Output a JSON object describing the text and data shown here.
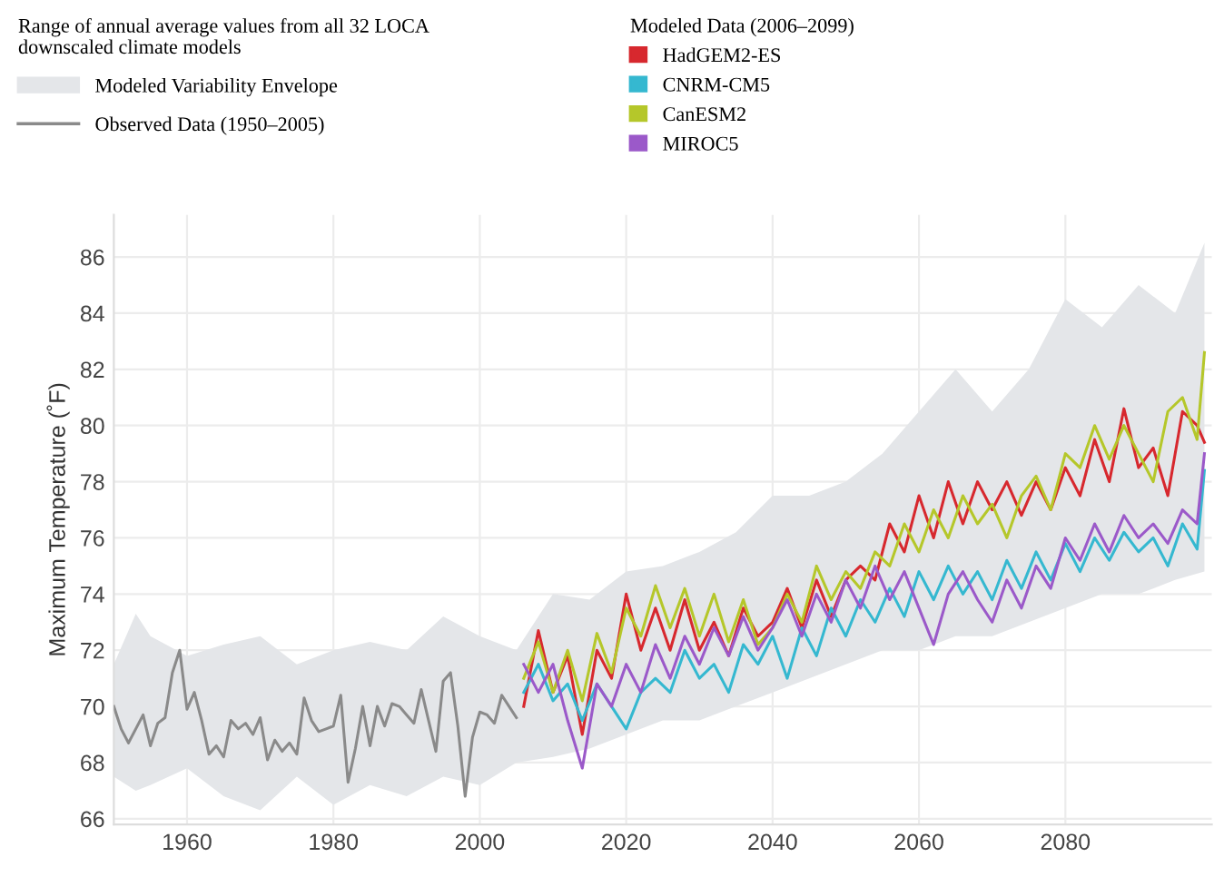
{
  "chart_data": {
    "type": "line",
    "ylabel": "Maximum Temperature (˚F)",
    "annotations": [
      "Range of annual average values from all 32 LOCA downscaled climate models",
      "Modeled Data (2006–2099)"
    ],
    "xlim": [
      1950,
      2100
    ],
    "xticks": [
      1960,
      1980,
      2000,
      2020,
      2040,
      2060,
      2080
    ],
    "ylim": [
      65.8,
      87.5
    ],
    "yticks": [
      66,
      68,
      70,
      72,
      74,
      76,
      78,
      80,
      82,
      84,
      86
    ],
    "grid": true,
    "legend": "top",
    "series": [
      {
        "name": "Modeled Variability Envelope",
        "type": "area",
        "color": "#e4e6e9",
        "x": [
          1950,
          1953,
          1955,
          1960,
          1965,
          1970,
          1975,
          1980,
          1985,
          1990,
          1995,
          2000,
          2005,
          2010,
          2015,
          2020,
          2025,
          2030,
          2035,
          2040,
          2045,
          2050,
          2055,
          2060,
          2065,
          2070,
          2075,
          2080,
          2085,
          2090,
          2095,
          2099
        ],
        "lower": [
          67.5,
          67.0,
          67.2,
          67.8,
          66.8,
          66.3,
          67.5,
          66.5,
          67.2,
          66.8,
          67.5,
          67.2,
          68.0,
          68.2,
          68.5,
          69.0,
          69.5,
          69.5,
          70.0,
          70.5,
          71.0,
          71.5,
          72.0,
          72.0,
          72.5,
          72.5,
          73.0,
          73.5,
          74.0,
          74.0,
          74.5,
          74.8
        ],
        "values": [
          null,
          null,
          null,
          null,
          null,
          null,
          null,
          null,
          null,
          null,
          null,
          null,
          null,
          null,
          null,
          null,
          null,
          null,
          null,
          null,
          null,
          null,
          null,
          null,
          null,
          null,
          null,
          null,
          null,
          null,
          null,
          null
        ],
        "upper": [
          71.5,
          73.3,
          72.5,
          71.8,
          72.2,
          72.5,
          71.5,
          72.0,
          72.3,
          72.0,
          73.2,
          72.5,
          72.0,
          74.0,
          73.8,
          74.8,
          75.0,
          75.5,
          76.2,
          77.5,
          77.5,
          78.0,
          79.0,
          80.5,
          82.0,
          80.5,
          82.0,
          84.5,
          83.5,
          85.0,
          84.0,
          86.5
        ]
      },
      {
        "name": "Observed Data (1950–2005)",
        "color": "#8a8a8a",
        "x": [
          1950,
          1951,
          1952,
          1953,
          1954,
          1955,
          1956,
          1957,
          1958,
          1959,
          1960,
          1961,
          1962,
          1963,
          1964,
          1965,
          1966,
          1967,
          1968,
          1969,
          1970,
          1971,
          1972,
          1973,
          1974,
          1975,
          1976,
          1977,
          1978,
          1979,
          1980,
          1981,
          1982,
          1983,
          1984,
          1985,
          1986,
          1987,
          1988,
          1989,
          1990,
          1991,
          1992,
          1993,
          1994,
          1995,
          1996,
          1997,
          1998,
          1999,
          2000,
          2001,
          2002,
          2003,
          2004,
          2005
        ],
        "values": [
          70.0,
          69.2,
          68.7,
          69.2,
          69.7,
          68.6,
          69.4,
          69.6,
          71.2,
          72.0,
          69.9,
          70.5,
          69.5,
          68.3,
          68.6,
          68.2,
          69.5,
          69.2,
          69.4,
          69.0,
          69.6,
          68.1,
          68.8,
          68.4,
          68.7,
          68.3,
          70.3,
          69.5,
          69.1,
          69.2,
          69.3,
          70.4,
          67.3,
          68.5,
          70.0,
          68.6,
          70.0,
          69.3,
          70.1,
          70.0,
          69.7,
          69.4,
          70.6,
          69.5,
          68.4,
          70.9,
          71.2,
          69.3,
          66.8,
          68.9,
          69.8,
          69.7,
          69.4,
          70.4,
          70.0,
          69.6
        ]
      },
      {
        "name": "HadGEM2-ES",
        "color": "#d7282e",
        "x": [
          2006,
          2008,
          2010,
          2012,
          2014,
          2016,
          2018,
          2020,
          2022,
          2024,
          2026,
          2028,
          2030,
          2032,
          2034,
          2036,
          2038,
          2040,
          2042,
          2044,
          2046,
          2048,
          2050,
          2052,
          2054,
          2056,
          2058,
          2060,
          2062,
          2064,
          2066,
          2068,
          2070,
          2072,
          2074,
          2076,
          2078,
          2080,
          2082,
          2084,
          2086,
          2088,
          2090,
          2092,
          2094,
          2096,
          2098,
          2099
        ],
        "values": [
          70.0,
          72.7,
          70.5,
          71.8,
          69.0,
          72.0,
          71.0,
          74.0,
          72.0,
          73.5,
          72.0,
          73.8,
          72.0,
          73.0,
          71.8,
          73.5,
          72.5,
          73.0,
          74.2,
          72.8,
          74.5,
          73.2,
          74.5,
          75.0,
          74.5,
          76.5,
          75.5,
          77.5,
          76.0,
          78.0,
          76.5,
          78.0,
          77.0,
          78.0,
          76.8,
          78.0,
          77.0,
          78.5,
          77.5,
          79.5,
          78.0,
          80.6,
          78.5,
          79.2,
          77.5,
          80.5,
          80.0,
          79.4
        ]
      },
      {
        "name": "CNRM-CM5",
        "color": "#35b8d0",
        "x": [
          2006,
          2008,
          2010,
          2012,
          2014,
          2016,
          2018,
          2020,
          2022,
          2024,
          2026,
          2028,
          2030,
          2032,
          2034,
          2036,
          2038,
          2040,
          2042,
          2044,
          2046,
          2048,
          2050,
          2052,
          2054,
          2056,
          2058,
          2060,
          2062,
          2064,
          2066,
          2068,
          2070,
          2072,
          2074,
          2076,
          2078,
          2080,
          2082,
          2084,
          2086,
          2088,
          2090,
          2092,
          2094,
          2096,
          2098,
          2099
        ],
        "values": [
          70.5,
          71.5,
          70.2,
          70.8,
          69.5,
          70.8,
          70.0,
          69.2,
          70.5,
          71.0,
          70.5,
          72.0,
          71.0,
          71.5,
          70.5,
          72.2,
          71.5,
          72.5,
          71.0,
          72.8,
          71.8,
          73.5,
          72.5,
          73.8,
          73.0,
          74.2,
          73.2,
          74.8,
          73.8,
          75.0,
          74.0,
          74.8,
          73.8,
          75.2,
          74.2,
          75.5,
          74.5,
          75.8,
          74.8,
          76.0,
          75.2,
          76.2,
          75.5,
          76.0,
          75.0,
          76.5,
          75.6,
          78.4
        ]
      },
      {
        "name": "CanESM2",
        "color": "#b5c72a",
        "x": [
          2006,
          2008,
          2010,
          2012,
          2014,
          2016,
          2018,
          2020,
          2022,
          2024,
          2026,
          2028,
          2030,
          2032,
          2034,
          2036,
          2038,
          2040,
          2042,
          2044,
          2046,
          2048,
          2050,
          2052,
          2054,
          2056,
          2058,
          2060,
          2062,
          2064,
          2066,
          2068,
          2070,
          2072,
          2074,
          2076,
          2078,
          2080,
          2082,
          2084,
          2086,
          2088,
          2090,
          2092,
          2094,
          2096,
          2098,
          2099
        ],
        "values": [
          71.0,
          72.3,
          70.5,
          72.0,
          70.2,
          72.6,
          71.2,
          73.5,
          72.5,
          74.3,
          72.8,
          74.2,
          72.5,
          74.0,
          72.3,
          73.8,
          72.2,
          72.8,
          74.0,
          73.0,
          75.0,
          73.8,
          74.8,
          74.2,
          75.5,
          75.0,
          76.5,
          75.5,
          77.0,
          76.0,
          77.5,
          76.5,
          77.2,
          76.0,
          77.5,
          78.2,
          77.0,
          79.0,
          78.5,
          80.0,
          78.8,
          80.0,
          79.0,
          78.0,
          80.5,
          81.0,
          79.5,
          82.6
        ]
      },
      {
        "name": "MIROC5",
        "color": "#9b59c9",
        "x": [
          2006,
          2008,
          2010,
          2012,
          2014,
          2016,
          2018,
          2020,
          2022,
          2024,
          2026,
          2028,
          2030,
          2032,
          2034,
          2036,
          2038,
          2040,
          2042,
          2044,
          2046,
          2048,
          2050,
          2052,
          2054,
          2056,
          2058,
          2060,
          2062,
          2064,
          2066,
          2068,
          2070,
          2072,
          2074,
          2076,
          2078,
          2080,
          2082,
          2084,
          2086,
          2088,
          2090,
          2092,
          2094,
          2096,
          2098,
          2099
        ],
        "values": [
          71.5,
          70.5,
          71.5,
          69.5,
          67.8,
          70.8,
          70.0,
          71.5,
          70.5,
          72.2,
          71.0,
          72.5,
          71.5,
          72.8,
          71.8,
          73.2,
          72.0,
          72.8,
          73.8,
          72.5,
          74.0,
          73.0,
          74.5,
          73.5,
          75.0,
          73.8,
          74.8,
          73.5,
          72.2,
          74.0,
          74.8,
          73.8,
          73.0,
          74.5,
          73.5,
          75.0,
          74.2,
          76.0,
          75.2,
          76.5,
          75.5,
          76.8,
          76.0,
          76.5,
          75.8,
          77.0,
          76.5,
          79.0
        ]
      }
    ]
  }
}
